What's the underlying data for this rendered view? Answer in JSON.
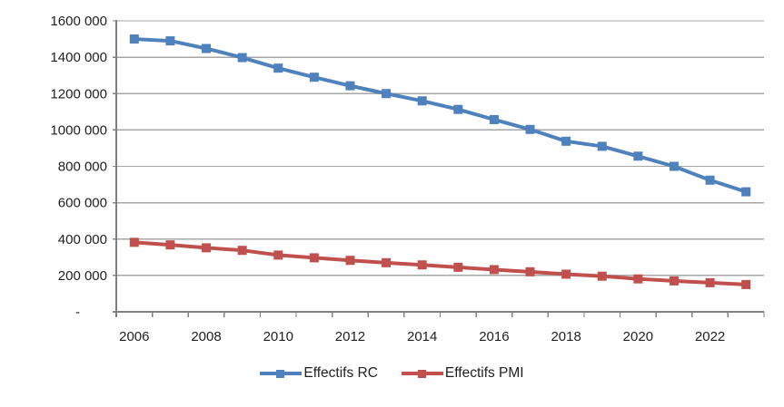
{
  "chart_data": {
    "type": "line",
    "title": "",
    "x": [
      2006,
      2007,
      2008,
      2009,
      2010,
      2011,
      2012,
      2013,
      2014,
      2015,
      2016,
      2017,
      2018,
      2019,
      2020,
      2021,
      2022,
      2023
    ],
    "series": [
      {
        "name": "Effectifs RC",
        "color": "#4F81BD",
        "values": [
          1500000,
          1490000,
          1448000,
          1398000,
          1340000,
          1290000,
          1243000,
          1200000,
          1160000,
          1113000,
          1057000,
          1003000,
          938000,
          910000,
          856000,
          800000,
          724000,
          660000
        ]
      },
      {
        "name": "Effectifs PMI",
        "color": "#C0504D",
        "values": [
          382000,
          368000,
          352000,
          338000,
          312000,
          297000,
          283000,
          270000,
          258000,
          245000,
          232000,
          220000,
          207000,
          196000,
          181000,
          170000,
          160000,
          150000
        ]
      }
    ],
    "ylim": [
      0,
      1600000
    ],
    "y_tick_interval": 200000,
    "y_tick_labels": [
      "-",
      "200 000",
      "400 000",
      "600 000",
      "800 000",
      "1000 000",
      "1200 000",
      "1400 000",
      "1600 000"
    ],
    "x_tick_labels": [
      "2006",
      "2008",
      "2010",
      "2012",
      "2014",
      "2016",
      "2018",
      "2020",
      "2022"
    ],
    "grid": true,
    "legend_position": "bottom",
    "axis_color": "#808080",
    "gridline_color": "#A6A6A6",
    "label_color": "#1f1f1f"
  }
}
